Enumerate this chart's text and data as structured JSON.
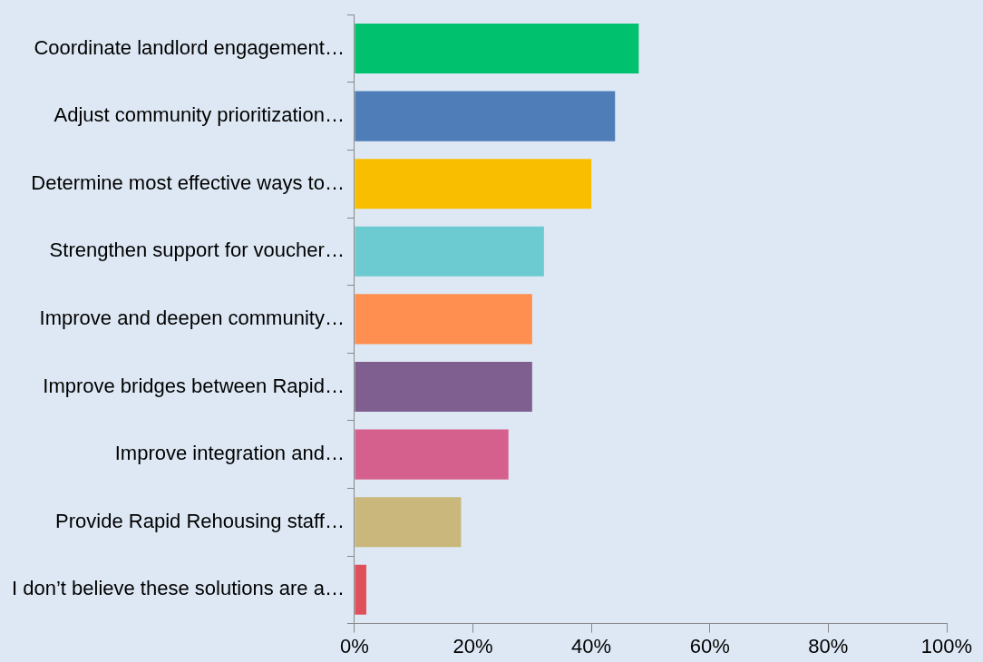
{
  "chart_data": {
    "type": "bar",
    "orientation": "horizontal",
    "categories": [
      "Coordinate landlord engagement…",
      "Adjust community prioritization…",
      "Determine most effective ways to…",
      "Strengthen support for voucher…",
      "Improve and deepen community…",
      "Improve bridges between Rapid…",
      "Improve integration and…",
      "Provide Rapid Rehousing staff…",
      "I don’t believe these solutions are a…"
    ],
    "values": [
      48,
      44,
      40,
      32,
      30,
      30,
      26,
      18,
      2
    ],
    "colors": [
      "#00c16e",
      "#4f7db8",
      "#f9be00",
      "#6ccbd0",
      "#ff8f50",
      "#7f5f8f",
      "#d6608d",
      "#c9b77b",
      "#e0505a"
    ],
    "xlim": [
      0,
      100
    ],
    "xticks": [
      {
        "value": 0,
        "label": "0%"
      },
      {
        "value": 20,
        "label": "20%"
      },
      {
        "value": 40,
        "label": "40%"
      },
      {
        "value": 60,
        "label": "60%"
      },
      {
        "value": 80,
        "label": "80%"
      },
      {
        "value": 100,
        "label": "100%"
      }
    ],
    "grid": false,
    "legend": false
  }
}
